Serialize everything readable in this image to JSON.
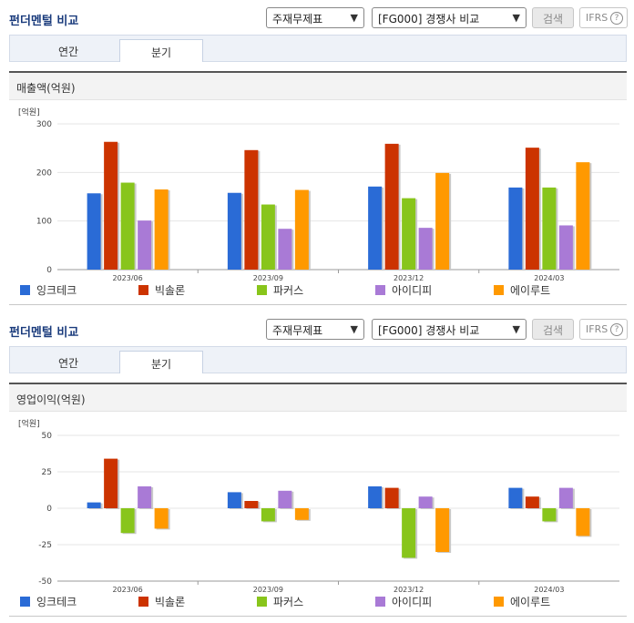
{
  "header": {
    "title": "펀더멘털 비교",
    "select_statement": "주재무제표",
    "select_group": "[FG000] 경쟁사 비교",
    "search_label": "검색",
    "ifrs_label": "IFRS",
    "help_glyph": "?"
  },
  "tabs": [
    {
      "label": "연간"
    },
    {
      "label": "분기"
    }
  ],
  "selected_tab": "분기",
  "colors": {
    "잉크테크": "#2a6bd6",
    "빅솔론": "#cc3300",
    "파커스": "#88c51b",
    "아이디피": "#a97ad6",
    "에이루트": "#ff9900"
  },
  "panels": [
    {
      "section_title": "매출액(억원)",
      "unit_label": "[억원]"
    },
    {
      "section_title": "영업이익(억원)",
      "unit_label": "[억원]"
    }
  ],
  "chart_data": [
    {
      "type": "bar",
      "title": "매출액(억원)",
      "unit": "[억원]",
      "categories": [
        "2023/06",
        "2023/09",
        "2023/12",
        "2024/03"
      ],
      "ylim": [
        0,
        300
      ],
      "yticks": [
        0,
        100,
        200,
        300
      ],
      "grid": true,
      "legend_position": "bottom",
      "series": [
        {
          "name": "잉크테크",
          "values": [
            157,
            158,
            171,
            169
          ]
        },
        {
          "name": "빅솔론",
          "values": [
            263,
            246,
            259,
            251
          ]
        },
        {
          "name": "파커스",
          "values": [
            179,
            134,
            147,
            169
          ]
        },
        {
          "name": "아이디피",
          "values": [
            101,
            84,
            86,
            91
          ]
        },
        {
          "name": "에이루트",
          "values": [
            165,
            164,
            199,
            221
          ]
        }
      ]
    },
    {
      "type": "bar",
      "title": "영업이익(억원)",
      "unit": "[억원]",
      "categories": [
        "2023/06",
        "2023/09",
        "2023/12",
        "2024/03"
      ],
      "ylim": [
        -50,
        50
      ],
      "yticks": [
        -50,
        -25,
        0,
        25,
        50
      ],
      "grid": true,
      "legend_position": "bottom",
      "series": [
        {
          "name": "잉크테크",
          "values": [
            4,
            11,
            15,
            14
          ]
        },
        {
          "name": "빅솔론",
          "values": [
            34,
            5,
            14,
            8
          ]
        },
        {
          "name": "파커스",
          "values": [
            -17,
            -9,
            -34,
            -9
          ]
        },
        {
          "name": "아이디피",
          "values": [
            15,
            12,
            8,
            14
          ]
        },
        {
          "name": "에이루트",
          "values": [
            -14,
            -8,
            -30,
            -19
          ]
        }
      ]
    }
  ]
}
